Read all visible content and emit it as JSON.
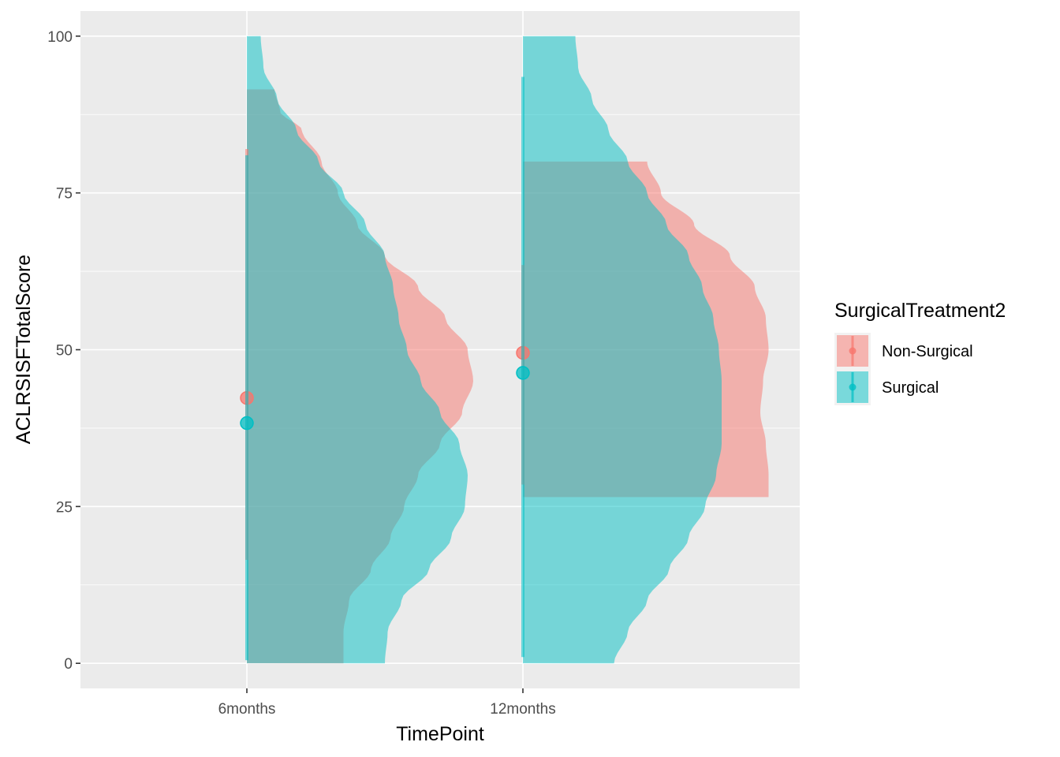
{
  "chart_data": {
    "type": "violin",
    "title": "",
    "xlabel": "TimePoint",
    "ylabel": "ACLRSISFTotalScore",
    "ylim": [
      -4,
      104
    ],
    "yticks": [
      0,
      25,
      50,
      75,
      100
    ],
    "categories": [
      "6months",
      "12months"
    ],
    "grid": true,
    "legend": {
      "title": "SurgicalTreatment2",
      "position": "right",
      "entries": [
        "Non-Surgical",
        "Surgical"
      ]
    },
    "series": [
      {
        "name": "Non-Surgical",
        "color": "#F8766D",
        "groups": [
          {
            "category": "6months",
            "density_range": [
              0,
              91.5
            ],
            "density": [
              [
                0,
                0.35
              ],
              [
                5,
                0.35
              ],
              [
                10,
                0.37
              ],
              [
                15,
                0.45
              ],
              [
                20,
                0.52
              ],
              [
                25,
                0.57
              ],
              [
                30,
                0.62
              ],
              [
                35,
                0.7
              ],
              [
                40,
                0.78
              ],
              [
                45,
                0.82
              ],
              [
                50,
                0.8
              ],
              [
                55,
                0.72
              ],
              [
                60,
                0.62
              ],
              [
                65,
                0.5
              ],
              [
                70,
                0.4
              ],
              [
                75,
                0.33
              ],
              [
                80,
                0.27
              ],
              [
                85,
                0.2
              ],
              [
                88,
                0.12
              ],
              [
                91.5,
                0.1
              ]
            ],
            "mean": 42.3,
            "ci": [
              16.5,
              82
            ]
          },
          {
            "category": "12months",
            "density_range": [
              26.5,
              80
            ],
            "density": [
              [
                26.5,
                0.89
              ],
              [
                30,
                0.89
              ],
              [
                35,
                0.88
              ],
              [
                40,
                0.86
              ],
              [
                45,
                0.87
              ],
              [
                50,
                0.89
              ],
              [
                55,
                0.88
              ],
              [
                60,
                0.84
              ],
              [
                65,
                0.75
              ],
              [
                70,
                0.62
              ],
              [
                75,
                0.5
              ],
              [
                80,
                0.45
              ]
            ],
            "mean": 49.5,
            "ci": [
              28.5,
              63.5
            ]
          }
        ]
      },
      {
        "name": "Surgical",
        "color": "#00BFC4",
        "groups": [
          {
            "category": "6months",
            "density_range": [
              0,
              100
            ],
            "density": [
              [
                0,
                0.5
              ],
              [
                5,
                0.51
              ],
              [
                10,
                0.56
              ],
              [
                15,
                0.66
              ],
              [
                20,
                0.74
              ],
              [
                25,
                0.79
              ],
              [
                30,
                0.8
              ],
              [
                35,
                0.77
              ],
              [
                40,
                0.7
              ],
              [
                45,
                0.63
              ],
              [
                50,
                0.58
              ],
              [
                55,
                0.55
              ],
              [
                60,
                0.53
              ],
              [
                65,
                0.5
              ],
              [
                70,
                0.43
              ],
              [
                75,
                0.35
              ],
              [
                80,
                0.26
              ],
              [
                85,
                0.18
              ],
              [
                90,
                0.11
              ],
              [
                95,
                0.06
              ],
              [
                100,
                0.05
              ]
            ],
            "mean": 38.3,
            "ci": [
              0.5,
              81
            ]
          },
          {
            "category": "12months",
            "density_range": [
              0,
              100
            ],
            "density": [
              [
                0,
                0.33
              ],
              [
                5,
                0.38
              ],
              [
                10,
                0.45
              ],
              [
                15,
                0.53
              ],
              [
                20,
                0.6
              ],
              [
                25,
                0.66
              ],
              [
                30,
                0.7
              ],
              [
                35,
                0.72
              ],
              [
                40,
                0.72
              ],
              [
                45,
                0.72
              ],
              [
                50,
                0.71
              ],
              [
                55,
                0.69
              ],
              [
                60,
                0.65
              ],
              [
                65,
                0.6
              ],
              [
                70,
                0.52
              ],
              [
                75,
                0.45
              ],
              [
                80,
                0.38
              ],
              [
                85,
                0.31
              ],
              [
                90,
                0.25
              ],
              [
                95,
                0.2
              ],
              [
                100,
                0.19
              ]
            ],
            "mean": 46.3,
            "ci": [
              1,
              93.5
            ]
          }
        ]
      }
    ]
  }
}
